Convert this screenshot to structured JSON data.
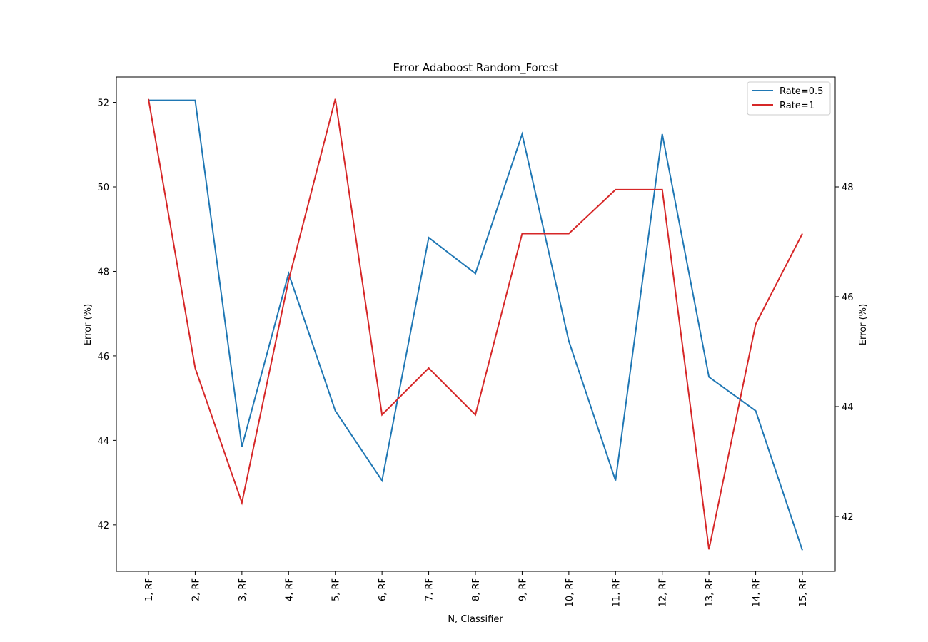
{
  "chart_data": {
    "type": "line",
    "title": "Error Adaboost Random_Forest",
    "xlabel": "N, Classifier",
    "ylabel_left": "Error (%)",
    "ylabel_right": "Error (%)",
    "categories": [
      "1, RF",
      "2, RF",
      "3, RF",
      "4, RF",
      "5, RF",
      "6, RF",
      "7, RF",
      "8, RF",
      "9, RF",
      "10, RF",
      "11, RF",
      "12, RF",
      "13, RF",
      "14, RF",
      "15, RF"
    ],
    "ylim_left": [
      40.9,
      52.6
    ],
    "ylim_right": [
      41.0,
      50.0
    ],
    "yticks_left": [
      42,
      44,
      46,
      48,
      50,
      52
    ],
    "yticks_right": [
      42,
      44,
      46,
      48
    ],
    "legend_position": "top-right",
    "grid": false,
    "series": [
      {
        "name": "Rate=0.5",
        "axis": "left",
        "color": "#1f77b4",
        "values": [
          52.05,
          52.05,
          43.85,
          47.95,
          44.7,
          43.05,
          48.8,
          47.95,
          51.25,
          46.35,
          43.05,
          51.25,
          45.5,
          44.7,
          41.4
        ]
      },
      {
        "name": "Rate=1",
        "axis": "right",
        "color": "#d62728",
        "values": [
          49.6,
          44.7,
          42.25,
          46.3,
          49.6,
          43.85,
          44.7,
          43.85,
          47.15,
          47.15,
          47.95,
          47.95,
          41.4,
          45.5,
          47.15
        ]
      }
    ]
  }
}
